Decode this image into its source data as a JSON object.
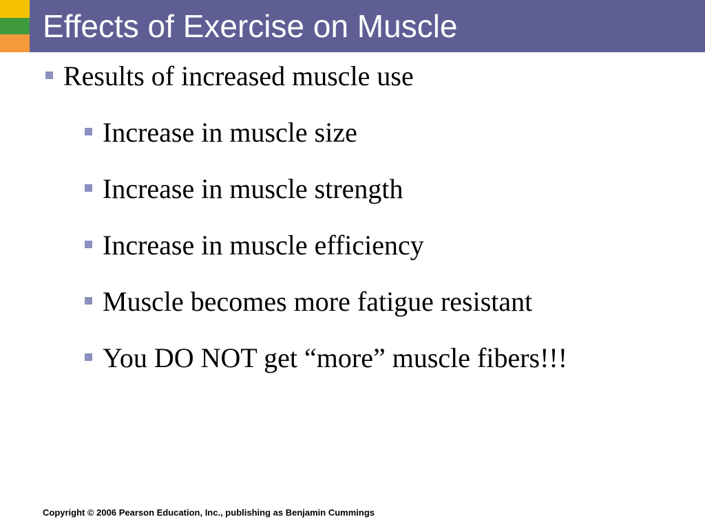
{
  "slide": {
    "title": "Effects of Exercise on Muscle",
    "colors": {
      "title_bar": "#5f5e94",
      "strip_yellow": "#f5c200",
      "strip_green": "#3f9a3c",
      "strip_orange": "#f59a3b",
      "bullet": "#8d8fbf"
    },
    "main_bullet": "Results of increased muscle use",
    "sub_bullets": [
      "Increase in muscle size",
      "Increase in muscle strength",
      "Increase in muscle efficiency",
      "Muscle becomes more fatigue resistant",
      "You DO NOT get “more” muscle fibers!!!"
    ],
    "footer": "Copyright © 2006 Pearson Education, Inc., publishing as Benjamin Cummings"
  }
}
